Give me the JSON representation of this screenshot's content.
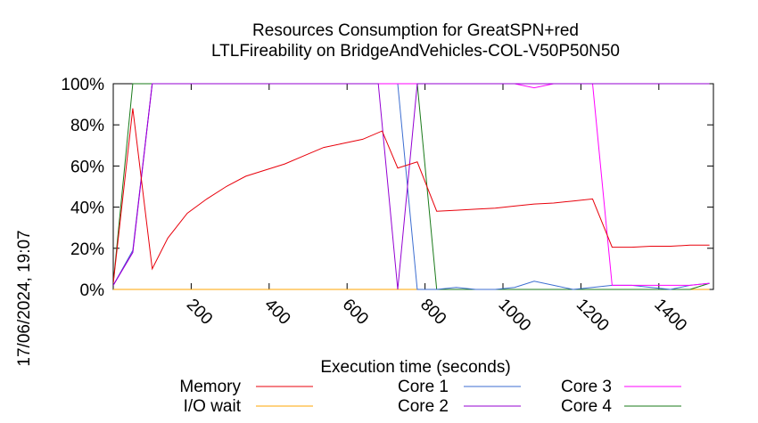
{
  "chart_data": {
    "type": "line",
    "title": [
      "Resources Consumption for GreatSPN+red",
      "LTLFireability on BridgeAndVehicles-COL-V50P50N50"
    ],
    "xlabel": "Execution time (seconds)",
    "ylabel": "",
    "xlim": [
      0,
      1540
    ],
    "ylim": [
      0,
      100
    ],
    "x_ticks": [
      200,
      400,
      600,
      800,
      1000,
      1200,
      1400
    ],
    "x_tick_labels": [
      "200",
      "400",
      "600",
      "800",
      "1000",
      "1200",
      "1400"
    ],
    "y_ticks": [
      0,
      20,
      40,
      60,
      80,
      100
    ],
    "y_tick_labels": [
      "0%",
      "20%",
      "40%",
      "60%",
      "80%",
      "100%"
    ],
    "timestamp": "17/06/2024, 19:07",
    "legend_position": "bottom",
    "series": [
      {
        "name": "Memory",
        "color": "#e8000b",
        "points": [
          [
            0,
            3
          ],
          [
            50,
            88
          ],
          [
            100,
            10
          ],
          [
            140,
            25
          ],
          [
            190,
            37
          ],
          [
            240,
            44
          ],
          [
            290,
            50
          ],
          [
            340,
            55
          ],
          [
            390,
            58
          ],
          [
            440,
            61
          ],
          [
            490,
            65
          ],
          [
            540,
            69
          ],
          [
            590,
            71
          ],
          [
            640,
            73
          ],
          [
            690,
            77
          ],
          [
            730,
            59
          ],
          [
            780,
            62
          ],
          [
            830,
            38
          ],
          [
            880,
            38.5
          ],
          [
            930,
            39
          ],
          [
            980,
            39.5
          ],
          [
            1030,
            40.5
          ],
          [
            1080,
            41.5
          ],
          [
            1130,
            42
          ],
          [
            1180,
            43
          ],
          [
            1230,
            44
          ],
          [
            1280,
            20.5
          ],
          [
            1330,
            20.5
          ],
          [
            1380,
            21
          ],
          [
            1430,
            21
          ],
          [
            1480,
            21.5
          ],
          [
            1530,
            21.5
          ]
        ]
      },
      {
        "name": "I/O wait",
        "color": "#ffa500",
        "points": [
          [
            0,
            0
          ],
          [
            1530,
            0
          ]
        ]
      },
      {
        "name": "Core 1",
        "color": "#3d6ed1",
        "points": [
          [
            0,
            2
          ],
          [
            50,
            19
          ],
          [
            100,
            100
          ],
          [
            680,
            100
          ],
          [
            730,
            100
          ],
          [
            780,
            0
          ],
          [
            830,
            0
          ],
          [
            880,
            1
          ],
          [
            930,
            0
          ],
          [
            980,
            0
          ],
          [
            1030,
            1
          ],
          [
            1080,
            4
          ],
          [
            1130,
            2
          ],
          [
            1180,
            0
          ],
          [
            1230,
            1
          ],
          [
            1280,
            2
          ],
          [
            1330,
            2
          ],
          [
            1380,
            1
          ],
          [
            1430,
            0
          ],
          [
            1480,
            2
          ],
          [
            1530,
            3
          ]
        ]
      },
      {
        "name": "Core 2",
        "color": "#9400d3",
        "points": [
          [
            0,
            2
          ],
          [
            50,
            18
          ],
          [
            100,
            100
          ],
          [
            680,
            100
          ],
          [
            730,
            0
          ],
          [
            780,
            100
          ],
          [
            830,
            100
          ],
          [
            1530,
            100
          ]
        ]
      },
      {
        "name": "Core 3",
        "color": "#ff00ff",
        "points": [
          [
            0,
            2
          ],
          [
            50,
            18
          ],
          [
            100,
            100
          ],
          [
            780,
            100
          ],
          [
            1030,
            100
          ],
          [
            1080,
            98
          ],
          [
            1130,
            100
          ],
          [
            1230,
            100
          ],
          [
            1280,
            2
          ],
          [
            1330,
            2
          ],
          [
            1380,
            2
          ],
          [
            1430,
            2
          ],
          [
            1480,
            2
          ],
          [
            1530,
            3
          ]
        ]
      },
      {
        "name": "Core 4",
        "color": "#1a7a1a",
        "points": [
          [
            0,
            3
          ],
          [
            50,
            100
          ],
          [
            780,
            100
          ],
          [
            830,
            0
          ],
          [
            1480,
            0
          ],
          [
            1530,
            3
          ]
        ]
      }
    ]
  }
}
